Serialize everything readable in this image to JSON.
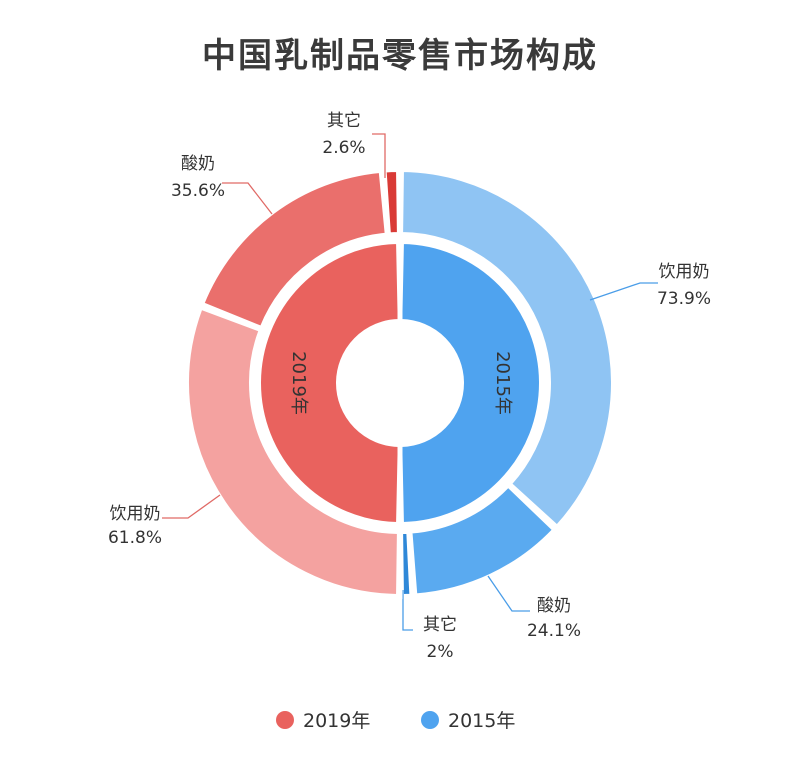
{
  "chart_data": {
    "type": "pie",
    "title": "中国乳制品零售市场构成",
    "categories": [
      "饮用奶",
      "酸奶",
      "其它"
    ],
    "series": [
      {
        "name": "2019年",
        "ring": "inner-left",
        "slices": [
          {
            "label": "饮用奶",
            "value_text": "61.8%",
            "value": 61.8,
            "color": "#f4a2a0"
          },
          {
            "label": "酸奶",
            "value_text": "35.6%",
            "value": 35.6,
            "color": "#ea6f6c"
          },
          {
            "label": "其它",
            "value_text": "2.6%",
            "value": 2.6,
            "color": "#d93a36"
          }
        ],
        "inner_color": "#e9625e"
      },
      {
        "name": "2015年",
        "ring": "inner-right",
        "slices": [
          {
            "label": "饮用奶",
            "value_text": "73.9%",
            "value": 73.9,
            "color": "#8fc4f3"
          },
          {
            "label": "酸奶",
            "value_text": "24.1%",
            "value": 24.1,
            "color": "#5aaaf0"
          },
          {
            "label": "其它",
            "value_text": "2%",
            "value": 2.0,
            "color": "#2f88d8"
          }
        ],
        "inner_color": "#4fa3ef"
      }
    ],
    "legend": {
      "placement": "bottom",
      "items": [
        {
          "label": "2019年",
          "color": "#e9625e"
        },
        {
          "label": "2015年",
          "color": "#4fa3ef"
        }
      ]
    },
    "colors": {
      "red_line": "#e06a66",
      "blue_line": "#4a9de8"
    }
  }
}
